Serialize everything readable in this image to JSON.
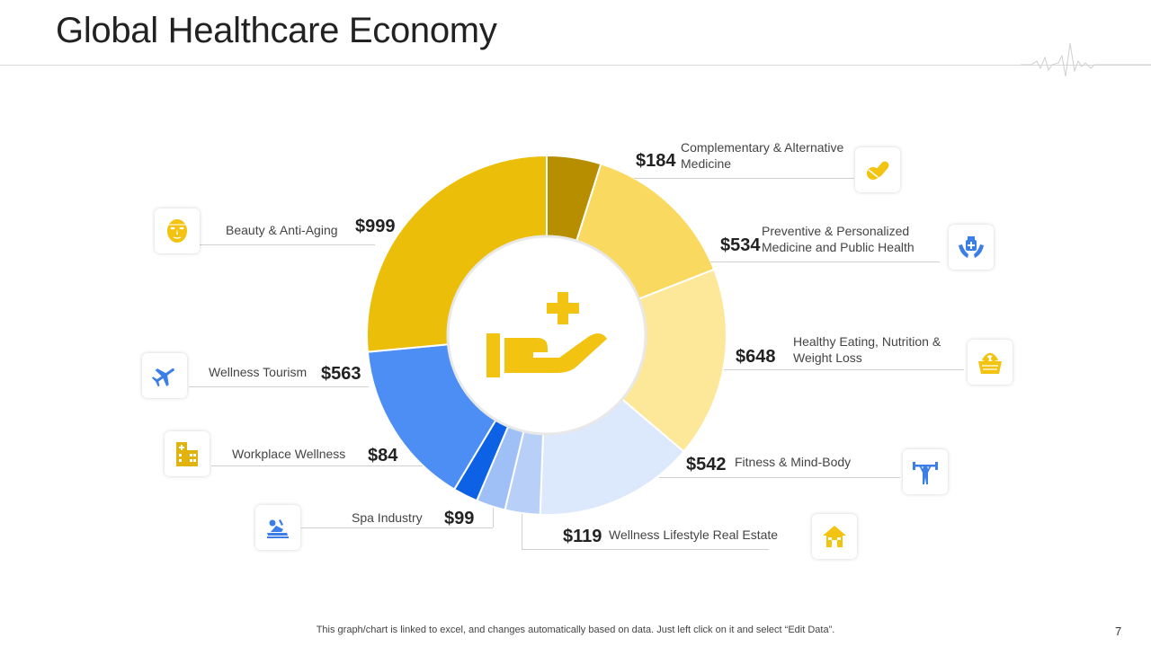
{
  "page": {
    "title": "Global Healthcare Economy",
    "footer": "This graph/chart is linked to excel,  and changes automatically based on data. Just left click on it and select “Edit Data”.",
    "page_number": "7"
  },
  "chart_data": {
    "type": "pie",
    "unit": "$",
    "slices": [
      {
        "label": "Complementary & Alternative Medicine",
        "line1": "Complementary & Alternative",
        "line2": "Medicine",
        "value": 184,
        "display": "$184",
        "color": "#b68e00",
        "icon": "pills-icon"
      },
      {
        "label": "Preventive & Personalized Medicine and Public Health",
        "line1": "Preventive & Personalized",
        "line2": "Medicine and Public Health",
        "value": 534,
        "display": "$534",
        "color": "#f9d95f",
        "icon": "medicine-hands-icon"
      },
      {
        "label": "Healthy Eating, Nutrition & Weight Loss",
        "line1": "Healthy Eating, Nutrition &",
        "line2": "Weight Loss",
        "value": 648,
        "display": "$648",
        "color": "#fde89a",
        "icon": "food-basket-icon"
      },
      {
        "label": "Fitness & Mind-Body",
        "line1": "Fitness & Mind-Body",
        "line2": "",
        "value": 542,
        "display": "$542",
        "color": "#dce8fb",
        "icon": "weightlifter-icon"
      },
      {
        "label": "Wellness Lifestyle Real Estate",
        "line1": "Wellness Lifestyle Real Estate",
        "line2": "",
        "value": 119,
        "display": "$119",
        "color": "#b8d0f8",
        "icon": "house-icon"
      },
      {
        "label": "Spa Industry",
        "line1": "Spa Industry",
        "line2": "",
        "value": 99,
        "display": "$99",
        "color": "#9fc0f6",
        "icon": "spa-massage-icon"
      },
      {
        "label": "Workplace Wellness",
        "line1": "Workplace Wellness",
        "line2": "",
        "value": 84,
        "display": "$84",
        "color": "#0c61e5",
        "icon": "office-building-icon"
      },
      {
        "label": "Wellness Tourism",
        "line1": "Wellness Tourism",
        "line2": "",
        "value": 563,
        "display": "$563",
        "color": "#4d8ef5",
        "icon": "airplane-icon"
      },
      {
        "label": "Beauty & Anti-Aging",
        "line1": "Beauty & Anti-Aging",
        "line2": "",
        "value": 999,
        "display": "$999",
        "color": "#ebbe0a",
        "icon": "face-mask-icon"
      }
    ],
    "center_icon": "health-care-hand-icon",
    "accent_yellow": "#f2c311",
    "accent_blue": "#3c7ee8"
  }
}
